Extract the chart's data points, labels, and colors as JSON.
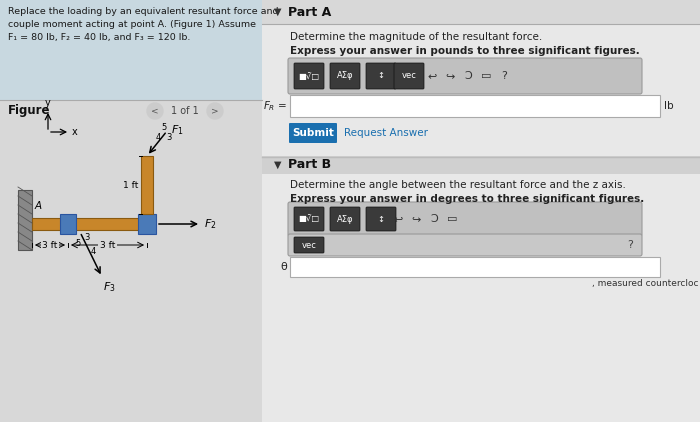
{
  "bg_main": "#e0e0e0",
  "left_header_bg": "#c8d8e0",
  "left_lower_bg": "#d8d8d8",
  "right_bg": "#d4d4d4",
  "right_content_bg": "#e4e4e4",
  "problem_text_line1": "Replace the loading by an equivalent resultant force and",
  "problem_text_line2": "couple moment acting at point A. (Figure 1) Assume",
  "problem_text_line3": "F₁ = 80 lb, F₂ = 40 lb, and F₃ = 120 lb.",
  "figure_label": "Figure",
  "nav_text": "1 of 1",
  "part_a_title": "Part A",
  "part_a_det": "Determine the magnitude of the resultant force.",
  "part_a_expr": "Express your answer in pounds to three significant figures.",
  "part_b_title": "Part B",
  "part_b_det": "Determine the angle between the resultant force and the z axis.",
  "part_b_expr": "Express your answer in degrees to three significant figures.",
  "lb_label": "lb",
  "theta_label": "θ",
  "measured_label": ", measured countercloc",
  "submit_btn_color": "#1a6faf",
  "submit_text": "Submit",
  "request_text": "Request Answer",
  "beam_color": "#c8862a",
  "beam_dark": "#8a5a10",
  "wall_color": "#888888",
  "joint_color": "#4a7ab8",
  "joint_dark": "#2a55a0"
}
